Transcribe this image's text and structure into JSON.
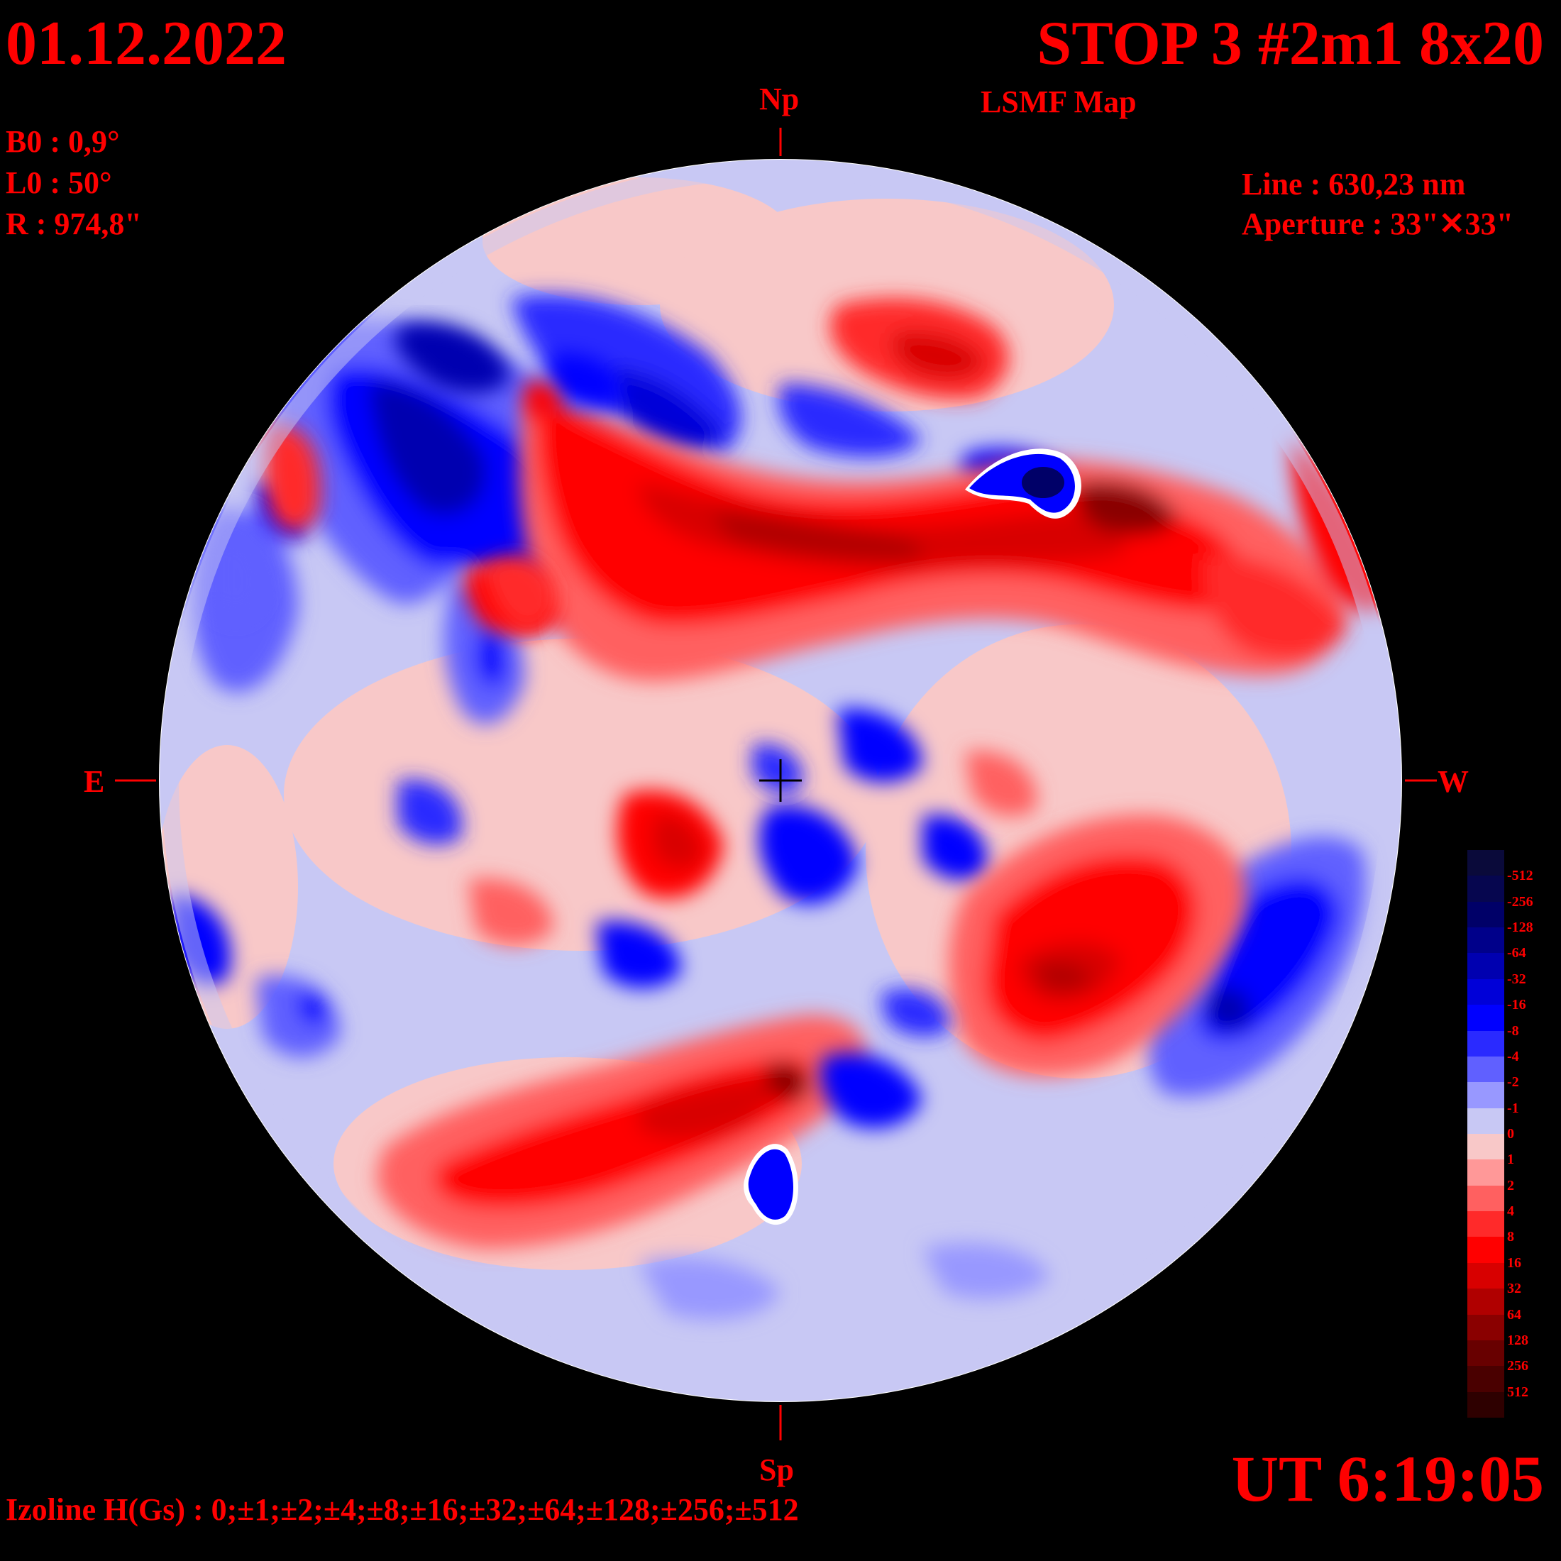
{
  "header": {
    "date": "01.12.2022",
    "stop_title": "STOP 3 #2m1 8x20",
    "map_type": "LSMF  Map"
  },
  "params": {
    "b0": "B0 : 0,9°",
    "l0": "L0 : 50°",
    "r": "R  : 974,8\"",
    "line": "Line :  630,23 nm",
    "aperture": "Aperture : 33\"✕33\""
  },
  "directions": {
    "north": "Np",
    "south": "Sp",
    "east": "E",
    "west": "W"
  },
  "footer": {
    "ut": "UT 6:19:05",
    "izoline": "Izoline H(Gs) : 0;±1;±2;±4;±8;±16;±32;±64;±128;±256;±512"
  },
  "legend": {
    "labels": [
      "-512",
      "-256",
      "-128",
      "-64",
      "-32",
      "-16",
      "-8",
      "-4",
      "-2",
      "-1",
      "0",
      "1",
      "2",
      "4",
      "8",
      "16",
      "32",
      "64",
      "128",
      "256",
      "512"
    ],
    "colors": [
      "#0a0a3a",
      "#06064f",
      "#000068",
      "#00008a",
      "#0000b0",
      "#0000d8",
      "#0000ff",
      "#2a2aff",
      "#6060ff",
      "#9898ff",
      "#c8c8f4",
      "#f8c8c8",
      "#ff9898",
      "#ff6060",
      "#ff2a2a",
      "#ff0000",
      "#d80000",
      "#b00000",
      "#8a0000",
      "#680000",
      "#4a0000",
      "#2e0000"
    ]
  },
  "colors": {
    "text": "#ff0000",
    "background": "#000000",
    "positive": "#ff0000",
    "negative": "#0000ff"
  }
}
